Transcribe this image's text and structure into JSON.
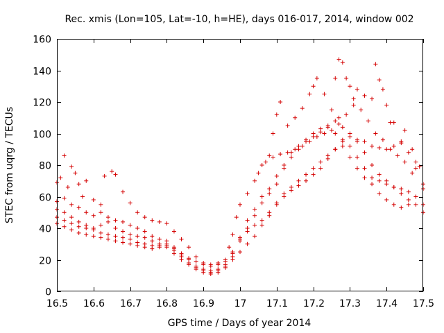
{
  "chart_data": {
    "type": "scatter",
    "title": "Rec. xmis (Lon=105, Lat=-10, h=HE), days 016-017, 2014, window 002",
    "xlabel": "GPS time / Days of year 2014",
    "ylabel": "STEC from uqrg / TECUs",
    "xlim": [
      16.5,
      17.5
    ],
    "ylim": [
      0,
      160
    ],
    "x_ticks": [
      16.5,
      16.6,
      16.7,
      16.8,
      16.9,
      17,
      17.1,
      17.2,
      17.3,
      17.4,
      17.5
    ],
    "x_tick_labels": [
      "16.5",
      "16.6",
      "16.7",
      "16.8",
      "16.9",
      "17",
      "17.1",
      "17.2",
      "17.3",
      "17.4",
      "17.5"
    ],
    "y_ticks": [
      0,
      20,
      40,
      60,
      80,
      100,
      120,
      140,
      160
    ],
    "y_tick_labels": [
      "0",
      "20",
      "40",
      "60",
      "80",
      "100",
      "120",
      "140",
      "160"
    ],
    "grid": false,
    "legend": "none",
    "marker": "plus",
    "color": "#d40000",
    "series": [
      {
        "points": [
          [
            16.5,
            69
          ],
          [
            16.51,
            72
          ],
          [
            16.52,
            86
          ],
          [
            16.53,
            66
          ],
          [
            16.54,
            79
          ],
          [
            16.55,
            75
          ],
          [
            16.56,
            68
          ],
          [
            16.57,
            60
          ],
          [
            16.58,
            70
          ],
          [
            16.6,
            58
          ],
          [
            16.62,
            55
          ],
          [
            16.63,
            73
          ],
          [
            16.65,
            76
          ],
          [
            16.66,
            74
          ],
          [
            16.68,
            63
          ],
          [
            16.7,
            56
          ],
          [
            16.72,
            50
          ],
          [
            16.74,
            47
          ],
          [
            16.76,
            45
          ],
          [
            16.78,
            44
          ],
          [
            16.8,
            43
          ],
          [
            16.82,
            38
          ],
          [
            16.84,
            33
          ],
          [
            16.86,
            28
          ],
          [
            16.88,
            22
          ],
          [
            16.9,
            18
          ],
          [
            16.92,
            17
          ],
          [
            16.94,
            18
          ],
          [
            16.96,
            20
          ],
          [
            16.97,
            28
          ],
          [
            16.98,
            36
          ],
          [
            16.99,
            47
          ],
          [
            17.0,
            55
          ],
          [
            17.02,
            62
          ],
          [
            17.04,
            70
          ],
          [
            17.06,
            80
          ],
          [
            17.08,
            86
          ],
          [
            17.09,
            100
          ],
          [
            17.1,
            112
          ],
          [
            17.11,
            120
          ],
          [
            17.13,
            105
          ],
          [
            17.15,
            110
          ],
          [
            17.17,
            116
          ],
          [
            17.19,
            125
          ],
          [
            17.2,
            130
          ],
          [
            17.21,
            135
          ],
          [
            17.23,
            125
          ],
          [
            17.25,
            115
          ],
          [
            17.26,
            135
          ],
          [
            17.27,
            147
          ],
          [
            17.28,
            145
          ],
          [
            17.29,
            135
          ],
          [
            17.3,
            130
          ],
          [
            17.31,
            122
          ],
          [
            17.32,
            128
          ],
          [
            17.34,
            124
          ],
          [
            17.36,
            122
          ],
          [
            17.37,
            144
          ],
          [
            17.38,
            134
          ],
          [
            17.39,
            128
          ],
          [
            17.4,
            118
          ],
          [
            17.41,
            107
          ],
          [
            17.42,
            107
          ],
          [
            17.44,
            94
          ],
          [
            17.45,
            102
          ],
          [
            17.47,
            90
          ],
          [
            17.48,
            82
          ],
          [
            17.49,
            79
          ]
        ]
      },
      {
        "points": [
          [
            16.5,
            57
          ],
          [
            16.52,
            59
          ],
          [
            16.54,
            55
          ],
          [
            16.56,
            53
          ],
          [
            16.58,
            50
          ],
          [
            16.6,
            48
          ],
          [
            16.62,
            50
          ],
          [
            16.64,
            47
          ],
          [
            16.66,
            45
          ],
          [
            16.68,
            44
          ],
          [
            16.7,
            42
          ],
          [
            16.72,
            40
          ],
          [
            16.74,
            38
          ],
          [
            16.76,
            35
          ],
          [
            16.78,
            33
          ],
          [
            16.8,
            32
          ],
          [
            16.82,
            28
          ],
          [
            16.84,
            24
          ],
          [
            16.86,
            20
          ],
          [
            16.88,
            16
          ],
          [
            16.9,
            14
          ],
          [
            16.92,
            13
          ],
          [
            16.94,
            14
          ],
          [
            16.96,
            16
          ],
          [
            16.98,
            22
          ],
          [
            17.0,
            32
          ],
          [
            17.02,
            40
          ],
          [
            17.04,
            48
          ],
          [
            17.06,
            56
          ],
          [
            17.08,
            62
          ],
          [
            17.1,
            68
          ],
          [
            17.12,
            78
          ],
          [
            17.14,
            88
          ],
          [
            17.16,
            92
          ],
          [
            17.18,
            96
          ],
          [
            17.2,
            100
          ],
          [
            17.22,
            103
          ],
          [
            17.24,
            105
          ],
          [
            17.26,
            108
          ],
          [
            17.27,
            110
          ],
          [
            17.28,
            104
          ],
          [
            17.3,
            98
          ],
          [
            17.32,
            96
          ],
          [
            17.34,
            95
          ],
          [
            17.36,
            92
          ],
          [
            17.38,
            91
          ],
          [
            17.4,
            90
          ],
          [
            17.42,
            92
          ],
          [
            17.44,
            95
          ],
          [
            17.46,
            88
          ],
          [
            17.48,
            78
          ],
          [
            17.5,
            65
          ]
        ]
      },
      {
        "points": [
          [
            16.5,
            47
          ],
          [
            16.52,
            45
          ],
          [
            16.54,
            43
          ],
          [
            16.56,
            41
          ],
          [
            16.58,
            40
          ],
          [
            16.6,
            39
          ],
          [
            16.62,
            37
          ],
          [
            16.64,
            36
          ],
          [
            16.66,
            35
          ],
          [
            16.68,
            34
          ],
          [
            16.7,
            33
          ],
          [
            16.72,
            31
          ],
          [
            16.74,
            30
          ],
          [
            16.76,
            29
          ],
          [
            16.78,
            29
          ],
          [
            16.8,
            28
          ],
          [
            16.82,
            24
          ],
          [
            16.84,
            20
          ],
          [
            16.86,
            17
          ],
          [
            16.88,
            14
          ],
          [
            16.9,
            12
          ],
          [
            16.92,
            11
          ],
          [
            16.94,
            12
          ],
          [
            16.96,
            15
          ],
          [
            16.98,
            20
          ],
          [
            17.0,
            25
          ],
          [
            17.02,
            30
          ],
          [
            17.04,
            35
          ],
          [
            17.06,
            42
          ],
          [
            17.08,
            50
          ],
          [
            17.1,
            56
          ],
          [
            17.12,
            62
          ],
          [
            17.14,
            66
          ],
          [
            17.16,
            70
          ],
          [
            17.18,
            74
          ],
          [
            17.2,
            78
          ],
          [
            17.22,
            82
          ],
          [
            17.24,
            86
          ],
          [
            17.26,
            90
          ],
          [
            17.28,
            95
          ],
          [
            17.3,
            92
          ],
          [
            17.32,
            85
          ],
          [
            17.34,
            78
          ],
          [
            17.36,
            72
          ],
          [
            17.38,
            70
          ],
          [
            17.4,
            68
          ],
          [
            17.42,
            66
          ],
          [
            17.44,
            65
          ],
          [
            17.46,
            63
          ],
          [
            17.48,
            60
          ],
          [
            17.5,
            55
          ]
        ]
      },
      {
        "points": [
          [
            16.5,
            43
          ],
          [
            16.52,
            41
          ],
          [
            16.54,
            39
          ],
          [
            16.56,
            37
          ],
          [
            16.58,
            36
          ],
          [
            16.6,
            35
          ],
          [
            16.62,
            34
          ],
          [
            16.64,
            33
          ],
          [
            16.66,
            32
          ],
          [
            16.68,
            31
          ],
          [
            16.7,
            30
          ],
          [
            16.72,
            29
          ],
          [
            16.74,
            28
          ],
          [
            16.76,
            27
          ],
          [
            16.78,
            28
          ],
          [
            16.8,
            30
          ],
          [
            16.82,
            27
          ],
          [
            16.84,
            22
          ],
          [
            16.86,
            18
          ],
          [
            16.88,
            15
          ],
          [
            16.9,
            13
          ],
          [
            16.92,
            12
          ],
          [
            16.94,
            13
          ],
          [
            16.96,
            17
          ],
          [
            16.98,
            25
          ],
          [
            17.0,
            33
          ],
          [
            17.02,
            38
          ],
          [
            17.04,
            42
          ],
          [
            17.06,
            45
          ],
          [
            17.08,
            48
          ],
          [
            17.1,
            55
          ],
          [
            17.12,
            60
          ],
          [
            17.14,
            64
          ],
          [
            17.16,
            67
          ],
          [
            17.18,
            70
          ],
          [
            17.2,
            74
          ],
          [
            17.22,
            78
          ],
          [
            17.24,
            84
          ],
          [
            17.26,
            90
          ],
          [
            17.28,
            96
          ],
          [
            17.3,
            100
          ],
          [
            17.32,
            95
          ],
          [
            17.34,
            88
          ],
          [
            17.36,
            80
          ],
          [
            17.38,
            74
          ],
          [
            17.4,
            70
          ],
          [
            17.42,
            66
          ],
          [
            17.44,
            62
          ],
          [
            17.46,
            58
          ],
          [
            17.48,
            55
          ],
          [
            17.5,
            50
          ]
        ]
      },
      {
        "points": [
          [
            16.5,
            52
          ],
          [
            16.52,
            50
          ],
          [
            16.54,
            47
          ],
          [
            16.56,
            44
          ],
          [
            16.58,
            42
          ],
          [
            16.6,
            40
          ],
          [
            16.62,
            42
          ],
          [
            16.64,
            44
          ],
          [
            16.66,
            40
          ],
          [
            16.68,
            38
          ],
          [
            16.7,
            36
          ],
          [
            16.72,
            35
          ],
          [
            16.74,
            34
          ],
          [
            16.76,
            32
          ],
          [
            16.78,
            30
          ],
          [
            16.8,
            29
          ],
          [
            16.82,
            26
          ],
          [
            16.84,
            23
          ],
          [
            16.86,
            21
          ],
          [
            16.88,
            19
          ],
          [
            16.9,
            17
          ],
          [
            16.92,
            16
          ],
          [
            16.94,
            17
          ],
          [
            16.96,
            19
          ],
          [
            16.98,
            24
          ],
          [
            17.0,
            34
          ],
          [
            17.02,
            45
          ],
          [
            17.04,
            52
          ],
          [
            17.06,
            60
          ],
          [
            17.08,
            65
          ],
          [
            17.1,
            73
          ],
          [
            17.12,
            80
          ],
          [
            17.14,
            85
          ],
          [
            17.16,
            90
          ],
          [
            17.18,
            95
          ],
          [
            17.2,
            98
          ],
          [
            17.22,
            101
          ],
          [
            17.24,
            104
          ],
          [
            17.26,
            100
          ],
          [
            17.28,
            92
          ],
          [
            17.3,
            85
          ],
          [
            17.32,
            78
          ],
          [
            17.34,
            72
          ],
          [
            17.36,
            68
          ],
          [
            17.38,
            62
          ],
          [
            17.4,
            58
          ],
          [
            17.42,
            55
          ],
          [
            17.44,
            53
          ],
          [
            17.46,
            55
          ],
          [
            17.48,
            60
          ],
          [
            17.5,
            68
          ]
        ]
      },
      {
        "points": [
          [
            17.05,
            75
          ],
          [
            17.07,
            82
          ],
          [
            17.09,
            85
          ],
          [
            17.11,
            87
          ],
          [
            17.13,
            88
          ],
          [
            17.15,
            90
          ],
          [
            17.17,
            92
          ],
          [
            17.19,
            95
          ],
          [
            17.21,
            98
          ],
          [
            17.23,
            100
          ],
          [
            17.25,
            102
          ],
          [
            17.27,
            106
          ],
          [
            17.29,
            112
          ],
          [
            17.31,
            118
          ],
          [
            17.33,
            115
          ],
          [
            17.35,
            108
          ],
          [
            17.37,
            100
          ],
          [
            17.39,
            96
          ],
          [
            17.41,
            90
          ],
          [
            17.43,
            86
          ],
          [
            17.45,
            82
          ],
          [
            17.47,
            75
          ]
        ]
      }
    ]
  }
}
